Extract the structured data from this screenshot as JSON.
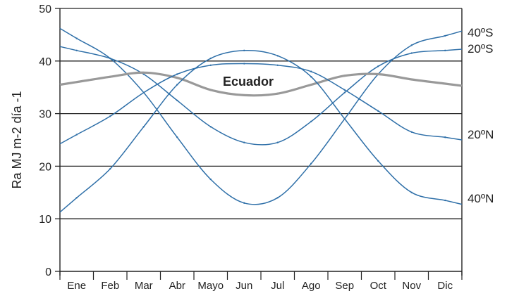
{
  "chart_data": {
    "type": "line",
    "categories": [
      "Ene",
      "Feb",
      "Mar",
      "Abr",
      "Mayo",
      "Jun",
      "Jul",
      "Ago",
      "Sep",
      "Oct",
      "Nov",
      "Dic"
    ],
    "ylabel": "Ra  MJ  m-2 día -1",
    "ylim": [
      0,
      50
    ],
    "yticks": [
      0,
      10,
      20,
      30,
      40,
      50
    ],
    "grid": "horizontal lines at 10, 20, 30, 40",
    "annotation": "Ecuador",
    "series": [
      {
        "name": "40ºS",
        "color": "#2e6fa8",
        "values": [
          44.3,
          40.5,
          34.0,
          25.5,
          17.5,
          13.0,
          14.0,
          20.5,
          29.0,
          37.5,
          43.0,
          44.8
        ]
      },
      {
        "name": "20ºS",
        "color": "#2e6fa8",
        "values": [
          42.0,
          40.5,
          37.5,
          32.5,
          27.5,
          24.5,
          24.5,
          28.5,
          34.0,
          39.0,
          41.5,
          42.0
        ]
      },
      {
        "name": "Ecuador",
        "color": "#999999",
        "values": [
          36.0,
          37.0,
          37.8,
          36.8,
          34.5,
          33.5,
          33.8,
          35.5,
          37.2,
          37.5,
          36.5,
          35.7
        ]
      },
      {
        "name": "20ºN",
        "color": "#2e6fa8",
        "values": [
          26.0,
          29.5,
          34.0,
          37.5,
          39.2,
          39.5,
          39.2,
          38.0,
          34.5,
          30.5,
          26.5,
          25.5
        ]
      },
      {
        "name": "40ºN",
        "color": "#2e6fa8",
        "values": [
          14.0,
          19.5,
          27.5,
          35.5,
          40.5,
          42.0,
          41.0,
          37.0,
          29.0,
          21.0,
          15.0,
          13.5
        ]
      }
    ]
  }
}
